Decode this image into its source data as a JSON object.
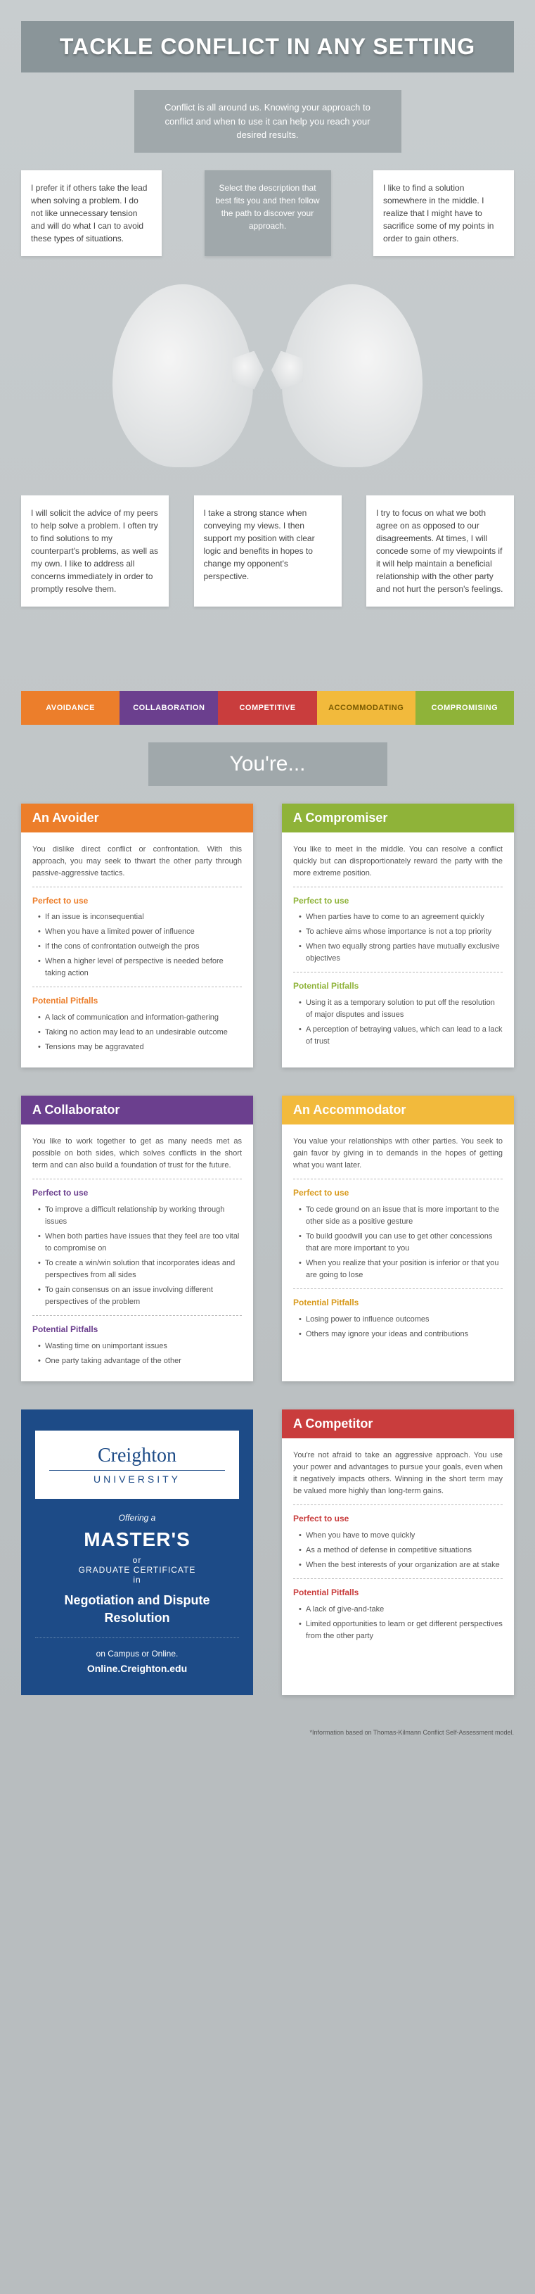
{
  "title": "TACKLE CONFLICT IN ANY SETTING",
  "intro": "Conflict is all around us. Knowing your approach to conflict and when to use it can help you reach your desired results.",
  "select_prompt": "Select the description that best fits you and then follow the path to discover your approach.",
  "desc1": "I prefer it if others take the lead when solving a problem. I do not like unnecessary tension and will do what I can to avoid these types of situations.",
  "desc2": "I like to find a solution somewhere in the middle. I realize that I might have to sacrifice some of my points in order to gain others.",
  "desc3": "I will solicit the advice of my peers to help solve a problem. I often try to find solutions to my counterpart's problems, as well as my own. I like to address all concerns immediately in order to promptly resolve them.",
  "desc4": "I take a strong stance when conveying my views. I then support my position with clear logic and benefits in hopes to change my opponent's perspective.",
  "desc5": "I try to focus on what we both agree on as opposed to our disagreements. At times, I will concede some of my viewpoints if it will help maintain a beneficial relationship with the other party and not hurt the person's feelings.",
  "tabs": {
    "avoidance": "AVOIDANCE",
    "collaboration": "COLLABORATION",
    "competitive": "COMPETITIVE",
    "accommodating": "ACCOMMODATING",
    "compromising": "COMPROMISING"
  },
  "youre": "You're...",
  "avoider": {
    "title": "An Avoider",
    "desc": "You dislike direct conflict or confrontation. With this approach, you may seek to thwart the other party through passive-aggressive tactics.",
    "perfect": "Perfect to use",
    "perfect_items": [
      "If an issue is inconsequential",
      "When you have a limited power of influence",
      "If the cons of confrontation outweigh the pros",
      "When a higher level of perspective is needed before taking action"
    ],
    "pitfalls": "Potential Pitfalls",
    "pitfall_items": [
      "A lack of communication and information-gathering",
      "Taking no action may lead to an undesirable outcome",
      "Tensions may be aggravated"
    ]
  },
  "compromiser": {
    "title": "A Compromiser",
    "desc": "You like to meet in the middle. You can resolve a conflict quickly but can disproportionately reward the party with the more extreme position.",
    "perfect": "Perfect to use",
    "perfect_items": [
      "When parties have to come to an agreement quickly",
      "To achieve aims whose importance is not a top priority",
      "When two equally strong parties have mutually exclusive objectives"
    ],
    "pitfalls": "Potential Pitfalls",
    "pitfall_items": [
      "Using it as a temporary solution to put off the resolution of major disputes and issues",
      "A perception of betraying values, which can lead to a lack of trust"
    ]
  },
  "collaborator": {
    "title": "A Collaborator",
    "desc": "You like to work together to get as many needs met as possible on both sides, which solves conflicts in the short term and can also build a foundation of trust for the future.",
    "perfect": "Perfect to use",
    "perfect_items": [
      "To improve a difficult relationship by working through issues",
      "When both parties have issues that they feel are too vital to compromise on",
      "To create a win/win solution that incorporates ideas and perspectives from all sides",
      "To gain consensus on an issue involving different perspectives of the problem"
    ],
    "pitfalls": "Potential Pitfalls",
    "pitfall_items": [
      "Wasting time on unimportant issues",
      "One party taking advantage of the other"
    ]
  },
  "accommodator": {
    "title": "An Accommodator",
    "desc": "You value your relationships with other parties. You seek to gain favor by giving in to demands in the hopes of getting what you want later.",
    "perfect": "Perfect to use",
    "perfect_items": [
      "To cede ground on an issue that is more important to the other side as a positive gesture",
      "To build goodwill you can use to get other concessions that are more important to you",
      "When you realize that your position is inferior or that you are going to lose"
    ],
    "pitfalls": "Potential Pitfalls",
    "pitfall_items": [
      "Losing power to influence outcomes",
      "Others may ignore your ideas and contributions"
    ]
  },
  "competitor": {
    "title": "A Competitor",
    "desc": "You're not afraid to take an aggressive approach. You use your power and advantages to pursue your goals, even when it negatively impacts others. Winning in the short term may be valued more highly than long-term gains.",
    "perfect": "Perfect to use",
    "perfect_items": [
      "When you have to move quickly",
      "As a method of defense in competitive situations",
      "When the best interests of your organization are at stake"
    ],
    "pitfalls": "Potential Pitfalls",
    "pitfall_items": [
      "A lack of give-and-take",
      "Limited opportunities to learn or get different perspectives from the other party"
    ]
  },
  "promo": {
    "cu": "Creighton",
    "uni": "UNIVERSITY",
    "offering": "Offering a",
    "masters": "MASTER'S",
    "or": "or",
    "gc": "GRADUATE CERTIFICATE",
    "in": "in",
    "ndr": "Negotiation and Dispute Resolution",
    "campus": "on Campus or Online.",
    "url": "Online.Creighton.edu"
  },
  "footnote": "*Information based on Thomas-Kilmann Conflict Self-Assessment model."
}
